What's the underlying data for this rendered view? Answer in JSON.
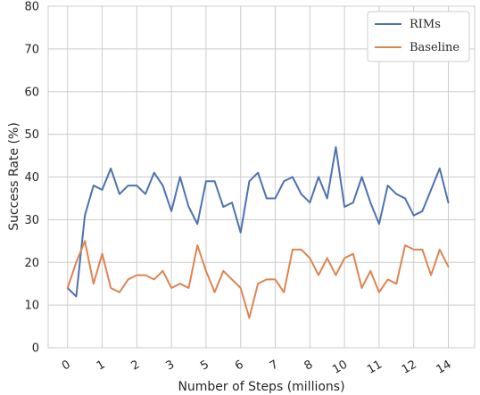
{
  "chart_data": {
    "type": "line",
    "title": "",
    "xlabel": "Number of Steps (millions)",
    "ylabel": "Success Rate (%)",
    "xlim": [
      -0.7,
      14.7
    ],
    "ylim": [
      0,
      80
    ],
    "grid": true,
    "legend_position": "top-right",
    "x_ticks": [
      {
        "pos": 0,
        "label": "0"
      },
      {
        "pos": 1.25,
        "label": "1"
      },
      {
        "pos": 2.5,
        "label": "2"
      },
      {
        "pos": 3.75,
        "label": "3"
      },
      {
        "pos": 5,
        "label": "5"
      },
      {
        "pos": 6.25,
        "label": "6"
      },
      {
        "pos": 7.5,
        "label": "7"
      },
      {
        "pos": 8.75,
        "label": "8"
      },
      {
        "pos": 10,
        "label": "10"
      },
      {
        "pos": 11.25,
        "label": "11"
      },
      {
        "pos": 12.5,
        "label": "12"
      },
      {
        "pos": 13.75,
        "label": "14"
      }
    ],
    "y_ticks": [
      0,
      10,
      20,
      30,
      40,
      50,
      60,
      70,
      80
    ],
    "x": [
      0,
      0.3125,
      0.625,
      0.9375,
      1.25,
      1.5625,
      1.875,
      2.1875,
      2.5,
      2.8125,
      3.125,
      3.4375,
      3.75,
      4.0625,
      4.375,
      4.6875,
      5,
      5.3125,
      5.625,
      5.9375,
      6.25,
      6.5625,
      6.875,
      7.1875,
      7.5,
      7.8125,
      8.125,
      8.4375,
      8.75,
      9.0625,
      9.375,
      9.6875,
      10,
      10.3125,
      10.625,
      10.9375,
      11.25,
      11.5625,
      11.875,
      12.1875,
      12.5,
      12.8125,
      13.125,
      13.4375,
      13.75
    ],
    "series": [
      {
        "name": "RIMs",
        "color": "#4c72b0",
        "values": [
          14,
          12,
          31,
          38,
          37,
          42,
          36,
          38,
          38,
          36,
          41,
          38,
          32,
          40,
          33,
          29,
          39,
          39,
          33,
          34,
          27,
          39,
          41,
          35,
          35,
          39,
          40,
          36,
          34,
          40,
          35,
          47,
          33,
          34,
          40,
          34,
          29,
          38,
          36,
          35,
          31,
          32,
          37,
          42,
          34
        ]
      },
      {
        "name": "Baseline",
        "color": "#dd8452",
        "values": [
          14,
          20,
          25,
          15,
          22,
          14,
          13,
          16,
          17,
          17,
          16,
          18,
          14,
          15,
          14,
          24,
          18,
          13,
          18,
          16,
          14,
          7,
          15,
          16,
          16,
          13,
          23,
          23,
          21,
          17,
          21,
          17,
          21,
          22,
          14,
          18,
          13,
          16,
          15,
          24,
          23,
          23,
          17,
          23,
          19
        ]
      }
    ]
  }
}
